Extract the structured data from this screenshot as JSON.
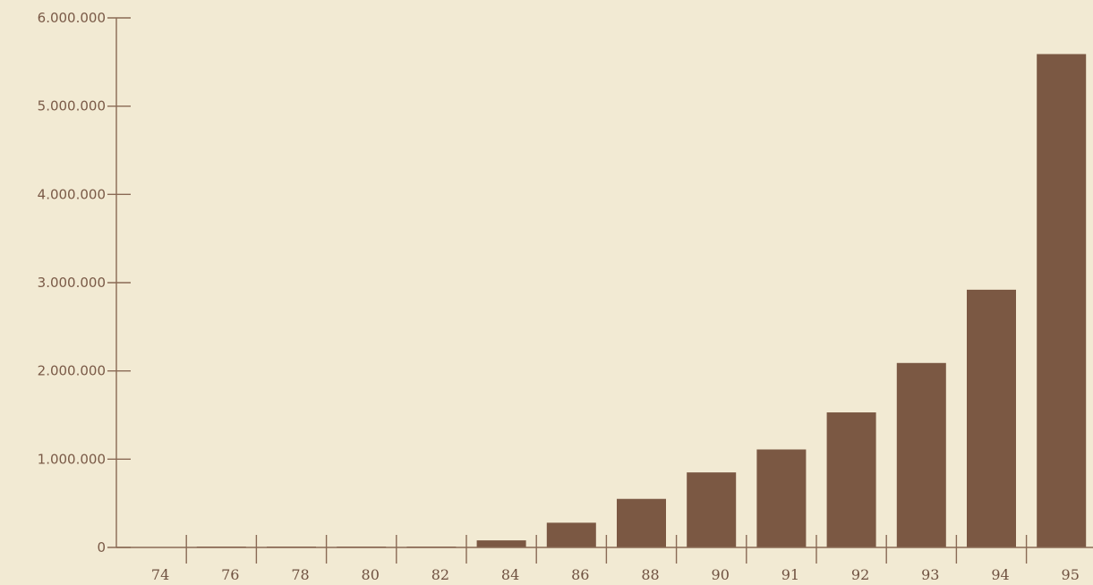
{
  "chart_data": {
    "type": "bar",
    "title": "",
    "xlabel": "",
    "ylabel": "",
    "categories": [
      "74",
      "76",
      "78",
      "80",
      "82",
      "84",
      "86",
      "88",
      "90",
      "91",
      "92",
      "93",
      "94",
      "95"
    ],
    "values": [
      0,
      10000,
      10000,
      10000,
      10000,
      80000,
      280000,
      550000,
      850000,
      1110000,
      1530000,
      2090000,
      2920000,
      5590000
    ],
    "y_ticks": [
      "0",
      "1.000.000",
      "2.000.000",
      "3.000.000",
      "4.000.000",
      "5.000.000",
      "6.000.000"
    ],
    "y_tick_values": [
      0,
      1000000,
      2000000,
      3000000,
      4000000,
      5000000,
      6000000
    ],
    "ylim": [
      0,
      6000000
    ],
    "grid": false,
    "legend": "none",
    "colors": {
      "bar": "#7b5843",
      "axis": "#8a6a55",
      "background": "#f2ead3"
    }
  }
}
